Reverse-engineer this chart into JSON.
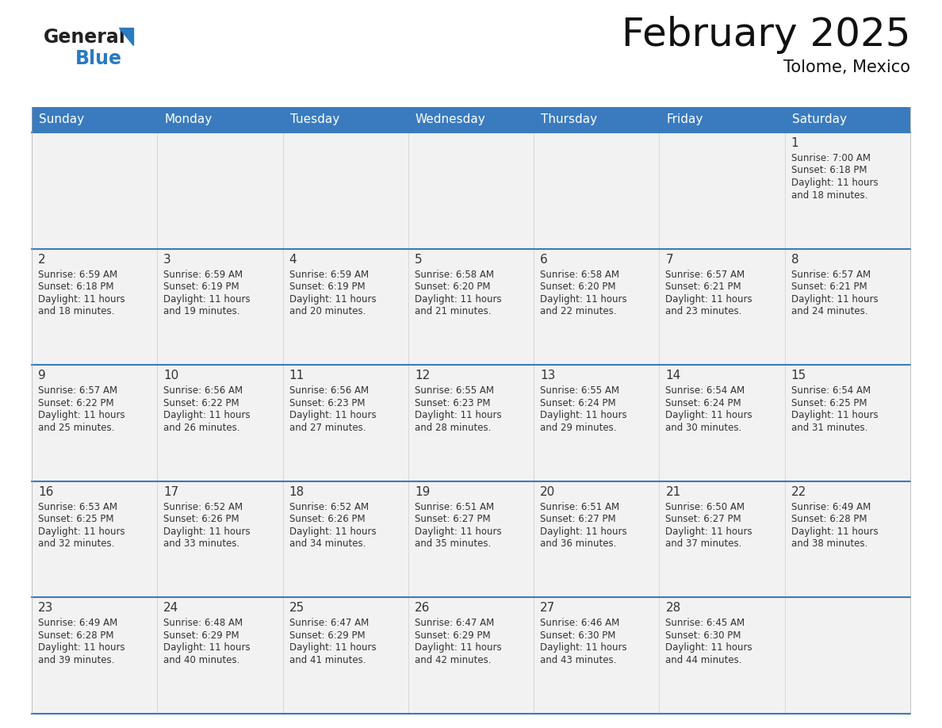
{
  "title": "February 2025",
  "subtitle": "Tolome, Mexico",
  "header_bg_color": "#3a7bbf",
  "header_text_color": "#ffffff",
  "cell_bg_light": "#f2f2f2",
  "border_color": "#3a7bbf",
  "day_names": [
    "Sunday",
    "Monday",
    "Tuesday",
    "Wednesday",
    "Thursday",
    "Friday",
    "Saturday"
  ],
  "text_color": "#333333",
  "calendar": [
    [
      null,
      null,
      null,
      null,
      null,
      null,
      {
        "day": 1,
        "sunrise": "7:00 AM",
        "sunset": "6:18 PM",
        "daylight_hours": 11,
        "daylight_minutes": 18
      }
    ],
    [
      {
        "day": 2,
        "sunrise": "6:59 AM",
        "sunset": "6:18 PM",
        "daylight_hours": 11,
        "daylight_minutes": 18
      },
      {
        "day": 3,
        "sunrise": "6:59 AM",
        "sunset": "6:19 PM",
        "daylight_hours": 11,
        "daylight_minutes": 19
      },
      {
        "day": 4,
        "sunrise": "6:59 AM",
        "sunset": "6:19 PM",
        "daylight_hours": 11,
        "daylight_minutes": 20
      },
      {
        "day": 5,
        "sunrise": "6:58 AM",
        "sunset": "6:20 PM",
        "daylight_hours": 11,
        "daylight_minutes": 21
      },
      {
        "day": 6,
        "sunrise": "6:58 AM",
        "sunset": "6:20 PM",
        "daylight_hours": 11,
        "daylight_minutes": 22
      },
      {
        "day": 7,
        "sunrise": "6:57 AM",
        "sunset": "6:21 PM",
        "daylight_hours": 11,
        "daylight_minutes": 23
      },
      {
        "day": 8,
        "sunrise": "6:57 AM",
        "sunset": "6:21 PM",
        "daylight_hours": 11,
        "daylight_minutes": 24
      }
    ],
    [
      {
        "day": 9,
        "sunrise": "6:57 AM",
        "sunset": "6:22 PM",
        "daylight_hours": 11,
        "daylight_minutes": 25
      },
      {
        "day": 10,
        "sunrise": "6:56 AM",
        "sunset": "6:22 PM",
        "daylight_hours": 11,
        "daylight_minutes": 26
      },
      {
        "day": 11,
        "sunrise": "6:56 AM",
        "sunset": "6:23 PM",
        "daylight_hours": 11,
        "daylight_minutes": 27
      },
      {
        "day": 12,
        "sunrise": "6:55 AM",
        "sunset": "6:23 PM",
        "daylight_hours": 11,
        "daylight_minutes": 28
      },
      {
        "day": 13,
        "sunrise": "6:55 AM",
        "sunset": "6:24 PM",
        "daylight_hours": 11,
        "daylight_minutes": 29
      },
      {
        "day": 14,
        "sunrise": "6:54 AM",
        "sunset": "6:24 PM",
        "daylight_hours": 11,
        "daylight_minutes": 30
      },
      {
        "day": 15,
        "sunrise": "6:54 AM",
        "sunset": "6:25 PM",
        "daylight_hours": 11,
        "daylight_minutes": 31
      }
    ],
    [
      {
        "day": 16,
        "sunrise": "6:53 AM",
        "sunset": "6:25 PM",
        "daylight_hours": 11,
        "daylight_minutes": 32
      },
      {
        "day": 17,
        "sunrise": "6:52 AM",
        "sunset": "6:26 PM",
        "daylight_hours": 11,
        "daylight_minutes": 33
      },
      {
        "day": 18,
        "sunrise": "6:52 AM",
        "sunset": "6:26 PM",
        "daylight_hours": 11,
        "daylight_minutes": 34
      },
      {
        "day": 19,
        "sunrise": "6:51 AM",
        "sunset": "6:27 PM",
        "daylight_hours": 11,
        "daylight_minutes": 35
      },
      {
        "day": 20,
        "sunrise": "6:51 AM",
        "sunset": "6:27 PM",
        "daylight_hours": 11,
        "daylight_minutes": 36
      },
      {
        "day": 21,
        "sunrise": "6:50 AM",
        "sunset": "6:27 PM",
        "daylight_hours": 11,
        "daylight_minutes": 37
      },
      {
        "day": 22,
        "sunrise": "6:49 AM",
        "sunset": "6:28 PM",
        "daylight_hours": 11,
        "daylight_minutes": 38
      }
    ],
    [
      {
        "day": 23,
        "sunrise": "6:49 AM",
        "sunset": "6:28 PM",
        "daylight_hours": 11,
        "daylight_minutes": 39
      },
      {
        "day": 24,
        "sunrise": "6:48 AM",
        "sunset": "6:29 PM",
        "daylight_hours": 11,
        "daylight_minutes": 40
      },
      {
        "day": 25,
        "sunrise": "6:47 AM",
        "sunset": "6:29 PM",
        "daylight_hours": 11,
        "daylight_minutes": 41
      },
      {
        "day": 26,
        "sunrise": "6:47 AM",
        "sunset": "6:29 PM",
        "daylight_hours": 11,
        "daylight_minutes": 42
      },
      {
        "day": 27,
        "sunrise": "6:46 AM",
        "sunset": "6:30 PM",
        "daylight_hours": 11,
        "daylight_minutes": 43
      },
      {
        "day": 28,
        "sunrise": "6:45 AM",
        "sunset": "6:30 PM",
        "daylight_hours": 11,
        "daylight_minutes": 44
      },
      null
    ]
  ],
  "logo_text1": "General",
  "logo_text2": "Blue",
  "logo_triangle_color": "#2a7bbf",
  "logo_color1": "#222222",
  "logo_color2": "#2a7bbf",
  "title_fontsize": 36,
  "subtitle_fontsize": 15,
  "header_fontsize": 11,
  "day_num_fontsize": 11,
  "cell_fontsize": 8.5
}
